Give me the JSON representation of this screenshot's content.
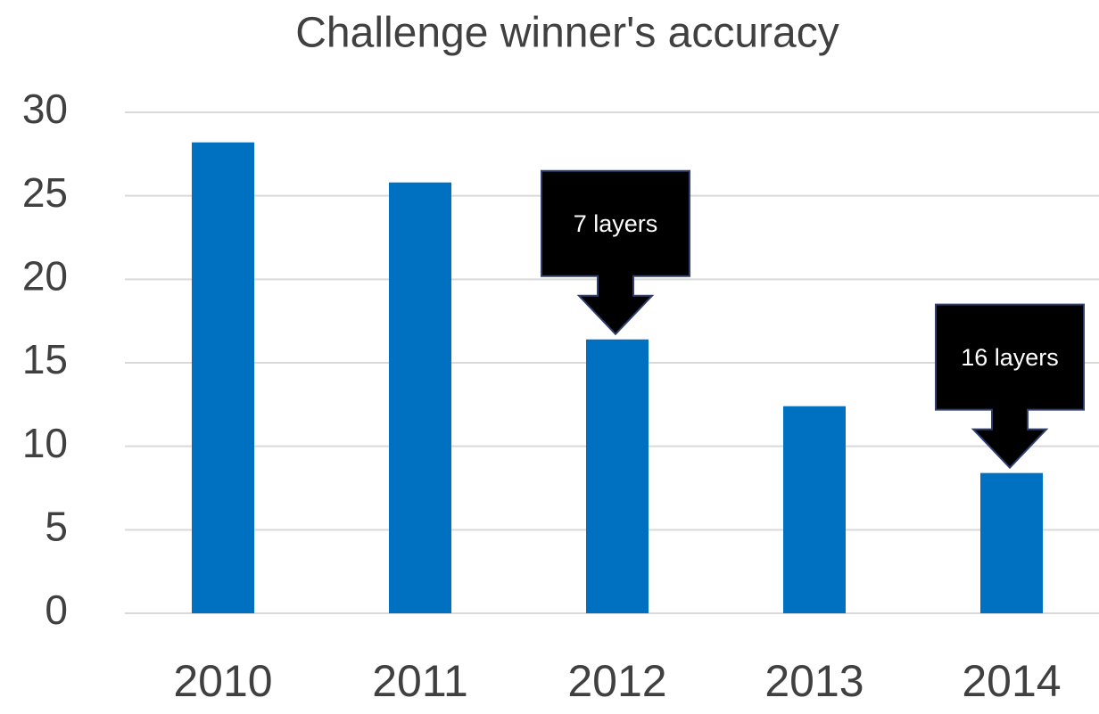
{
  "chart_data": {
    "type": "bar",
    "title": "Challenge winner's accuracy",
    "categories": [
      "2010",
      "2011",
      "2012",
      "2013",
      "2014"
    ],
    "values": [
      28.2,
      25.8,
      16.4,
      12.4,
      8.4
    ],
    "color": "#0070c0",
    "ylim": [
      0,
      30
    ],
    "yticks": [
      0,
      5,
      10,
      15,
      20,
      25,
      30
    ],
    "grid": true,
    "annotations": [
      {
        "text": "7 layers",
        "category": "2012"
      },
      {
        "text": "16 layers",
        "category": "2014"
      }
    ]
  }
}
